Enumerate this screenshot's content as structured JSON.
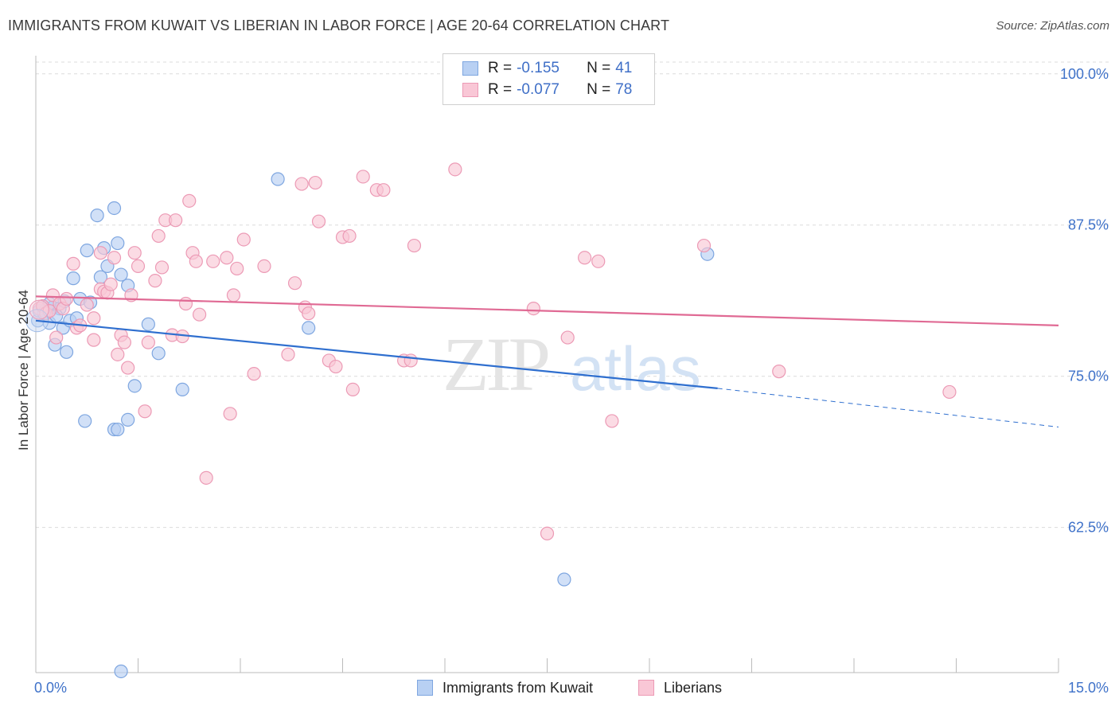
{
  "title": "IMMIGRANTS FROM KUWAIT VS LIBERIAN IN LABOR FORCE | AGE 20-64 CORRELATION CHART",
  "source": "Source: ZipAtlas.com",
  "watermark": {
    "zip": "ZIP",
    "atlas": "atlas"
  },
  "legend": {
    "rows": [
      {
        "r_label": "R =",
        "r_value": "-0.155",
        "n_label": "N =",
        "n_value": "41",
        "fill": "#b8d0f3",
        "stroke": "#7ea6e0"
      },
      {
        "r_label": "R =",
        "r_value": "-0.077",
        "n_label": "N =",
        "n_value": "78",
        "fill": "#f9c7d6",
        "stroke": "#ec9ab5"
      }
    ]
  },
  "bottom_legend": [
    {
      "label": "Immigrants from Kuwait",
      "fill": "#b8d0f3",
      "stroke": "#7ea6e0"
    },
    {
      "label": "Liberians",
      "fill": "#f9c7d6",
      "stroke": "#ec9ab5"
    }
  ],
  "colors": {
    "blue_line": "#2f6fcf",
    "pink_line": "#e06a94",
    "tick_label": "#3f72c9",
    "grid": "#dcdcdc"
  },
  "chart_data": {
    "type": "scatter",
    "title": "IMMIGRANTS FROM KUWAIT VS LIBERIAN IN LABOR FORCE | AGE 20-64 CORRELATION CHART",
    "xlabel": "",
    "ylabel": "In Labor Force | Age 20-64",
    "xlim": [
      0,
      15
    ],
    "ylim": [
      50.5,
      101.5
    ],
    "x_tick_labels": [
      "0.0%",
      "15.0%"
    ],
    "y_ticks": [
      62.5,
      75.0,
      87.5,
      100.0
    ],
    "y_tick_labels": [
      "62.5%",
      "75.0%",
      "87.5%",
      "100.0%"
    ],
    "grid": true,
    "series": [
      {
        "name": "Immigrants from Kuwait",
        "color": "#7ea6e0",
        "fill": "#b8d0f3",
        "trend": {
          "x0": 0.0,
          "y0": 79.6,
          "x1": 10.0,
          "y1": 74.0,
          "dash_x1": 15.0,
          "dash_y1": 70.8
        },
        "points": [
          [
            0.03,
            79.6
          ],
          [
            0.05,
            80.4
          ],
          [
            0.1,
            80.8
          ],
          [
            0.15,
            80.5
          ],
          [
            0.2,
            79.4
          ],
          [
            0.25,
            80.7
          ],
          [
            0.28,
            77.6
          ],
          [
            0.35,
            80.6
          ],
          [
            0.4,
            79.0
          ],
          [
            0.45,
            77.0
          ],
          [
            0.5,
            79.6
          ],
          [
            0.55,
            83.1
          ],
          [
            0.6,
            79.8
          ],
          [
            0.65,
            81.4
          ],
          [
            0.75,
            85.4
          ],
          [
            0.8,
            81.1
          ],
          [
            0.9,
            88.3
          ],
          [
            0.95,
            83.2
          ],
          [
            1.0,
            85.6
          ],
          [
            1.05,
            84.1
          ],
          [
            1.15,
            88.9
          ],
          [
            1.2,
            86.0
          ],
          [
            1.25,
            83.4
          ],
          [
            1.35,
            82.5
          ],
          [
            1.65,
            79.3
          ],
          [
            1.8,
            76.9
          ],
          [
            1.45,
            74.2
          ],
          [
            2.15,
            73.9
          ],
          [
            0.72,
            71.3
          ],
          [
            1.15,
            70.6
          ],
          [
            1.2,
            70.6
          ],
          [
            1.35,
            71.4
          ],
          [
            3.55,
            91.3
          ],
          [
            4.0,
            79.0
          ],
          [
            9.85,
            85.1
          ],
          [
            7.75,
            58.2
          ],
          [
            1.25,
            50.6
          ],
          [
            0.12,
            80.2
          ],
          [
            0.2,
            81.0
          ],
          [
            0.42,
            81.2
          ],
          [
            0.3,
            80.0
          ]
        ]
      },
      {
        "name": "Liberians",
        "color": "#ec9ab5",
        "fill": "#f9c7d6",
        "trend": {
          "x0": 0.0,
          "y0": 81.6,
          "x1": 15.0,
          "y1": 79.2
        },
        "points": [
          [
            0.05,
            80.6
          ],
          [
            0.1,
            80.8
          ],
          [
            0.15,
            80.2
          ],
          [
            0.2,
            80.4
          ],
          [
            0.25,
            81.7
          ],
          [
            0.3,
            78.2
          ],
          [
            0.35,
            81.0
          ],
          [
            0.4,
            80.6
          ],
          [
            0.45,
            81.4
          ],
          [
            0.55,
            84.3
          ],
          [
            0.6,
            79.0
          ],
          [
            0.65,
            79.2
          ],
          [
            0.75,
            80.9
          ],
          [
            0.85,
            79.8
          ],
          [
            0.85,
            78.0
          ],
          [
            0.95,
            82.2
          ],
          [
            0.95,
            85.2
          ],
          [
            1.0,
            82.0
          ],
          [
            1.05,
            81.9
          ],
          [
            1.1,
            82.6
          ],
          [
            1.15,
            84.8
          ],
          [
            1.2,
            76.8
          ],
          [
            1.25,
            78.4
          ],
          [
            1.3,
            77.8
          ],
          [
            1.35,
            75.7
          ],
          [
            1.4,
            81.7
          ],
          [
            1.45,
            85.2
          ],
          [
            1.5,
            84.1
          ],
          [
            1.6,
            72.1
          ],
          [
            1.65,
            77.8
          ],
          [
            1.75,
            82.9
          ],
          [
            1.8,
            86.6
          ],
          [
            1.85,
            84.0
          ],
          [
            1.9,
            87.9
          ],
          [
            2.0,
            78.4
          ],
          [
            2.05,
            87.9
          ],
          [
            2.15,
            78.3
          ],
          [
            2.2,
            81.0
          ],
          [
            2.25,
            89.5
          ],
          [
            2.3,
            85.2
          ],
          [
            2.35,
            84.5
          ],
          [
            2.4,
            80.1
          ],
          [
            2.5,
            66.6
          ],
          [
            2.6,
            84.5
          ],
          [
            2.8,
            84.8
          ],
          [
            2.85,
            71.9
          ],
          [
            2.9,
            81.7
          ],
          [
            2.95,
            83.9
          ],
          [
            3.05,
            86.3
          ],
          [
            3.2,
            75.2
          ],
          [
            3.35,
            84.1
          ],
          [
            3.7,
            76.8
          ],
          [
            3.8,
            82.7
          ],
          [
            3.9,
            90.9
          ],
          [
            3.95,
            80.7
          ],
          [
            4.0,
            80.2
          ],
          [
            4.1,
            91.0
          ],
          [
            4.15,
            87.8
          ],
          [
            4.3,
            76.3
          ],
          [
            4.4,
            75.8
          ],
          [
            4.5,
            86.5
          ],
          [
            4.6,
            86.6
          ],
          [
            4.65,
            73.9
          ],
          [
            4.8,
            91.5
          ],
          [
            5.0,
            90.4
          ],
          [
            5.1,
            90.4
          ],
          [
            5.4,
            76.3
          ],
          [
            5.5,
            76.3
          ],
          [
            5.55,
            85.8
          ],
          [
            6.15,
            92.1
          ],
          [
            7.3,
            80.6
          ],
          [
            7.5,
            62.0
          ],
          [
            7.8,
            78.2
          ],
          [
            8.05,
            84.8
          ],
          [
            8.25,
            84.5
          ],
          [
            8.45,
            71.3
          ],
          [
            9.8,
            85.8
          ],
          [
            10.9,
            75.4
          ],
          [
            13.4,
            73.7
          ]
        ]
      }
    ]
  }
}
